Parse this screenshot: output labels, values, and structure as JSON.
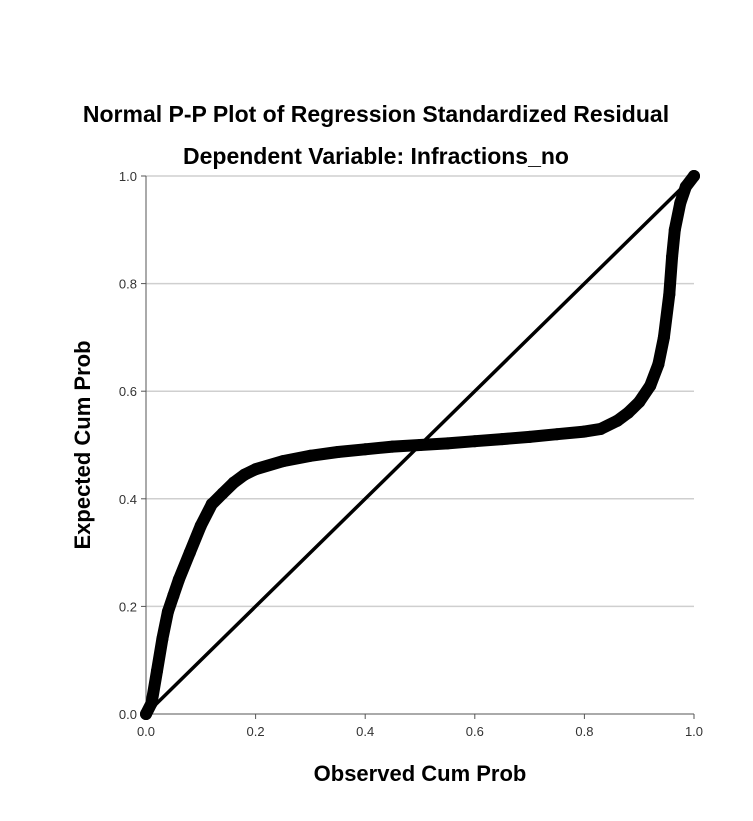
{
  "chart_data": {
    "type": "scatter",
    "title": "Normal P-P Plot of Regression Standardized Residual",
    "subtitle": "Dependent Variable: Infractions_no",
    "xlabel": "Observed Cum Prob",
    "ylabel": "Expected Cum Prob",
    "xlim": [
      0.0,
      1.0
    ],
    "ylim": [
      0.0,
      1.0
    ],
    "x_ticks": [
      "0.0",
      "0.2",
      "0.4",
      "0.6",
      "0.8",
      "1.0"
    ],
    "y_ticks": [
      "0.0",
      "0.2",
      "0.4",
      "0.6",
      "0.8",
      "1.0"
    ],
    "grid": "horizontal",
    "reference_line": {
      "from": [
        0,
        0
      ],
      "to": [
        1,
        1
      ]
    },
    "series": [
      {
        "points": [
          [
            0.0,
            0.0
          ],
          [
            0.01,
            0.02
          ],
          [
            0.02,
            0.08
          ],
          [
            0.03,
            0.14
          ],
          [
            0.04,
            0.19
          ],
          [
            0.05,
            0.22
          ],
          [
            0.06,
            0.25
          ],
          [
            0.08,
            0.3
          ],
          [
            0.1,
            0.35
          ],
          [
            0.12,
            0.39
          ],
          [
            0.14,
            0.41
          ],
          [
            0.16,
            0.43
          ],
          [
            0.18,
            0.445
          ],
          [
            0.2,
            0.455
          ],
          [
            0.25,
            0.47
          ],
          [
            0.3,
            0.48
          ],
          [
            0.35,
            0.487
          ],
          [
            0.4,
            0.492
          ],
          [
            0.45,
            0.497
          ],
          [
            0.5,
            0.5
          ],
          [
            0.55,
            0.503
          ],
          [
            0.6,
            0.507
          ],
          [
            0.65,
            0.511
          ],
          [
            0.7,
            0.515
          ],
          [
            0.75,
            0.52
          ],
          [
            0.8,
            0.525
          ],
          [
            0.83,
            0.53
          ],
          [
            0.86,
            0.545
          ],
          [
            0.88,
            0.56
          ],
          [
            0.9,
            0.58
          ],
          [
            0.92,
            0.61
          ],
          [
            0.935,
            0.65
          ],
          [
            0.945,
            0.7
          ],
          [
            0.955,
            0.78
          ],
          [
            0.96,
            0.85
          ],
          [
            0.965,
            0.9
          ],
          [
            0.975,
            0.95
          ],
          [
            0.985,
            0.98
          ],
          [
            1.0,
            1.0
          ]
        ],
        "color": "#000000"
      }
    ]
  }
}
